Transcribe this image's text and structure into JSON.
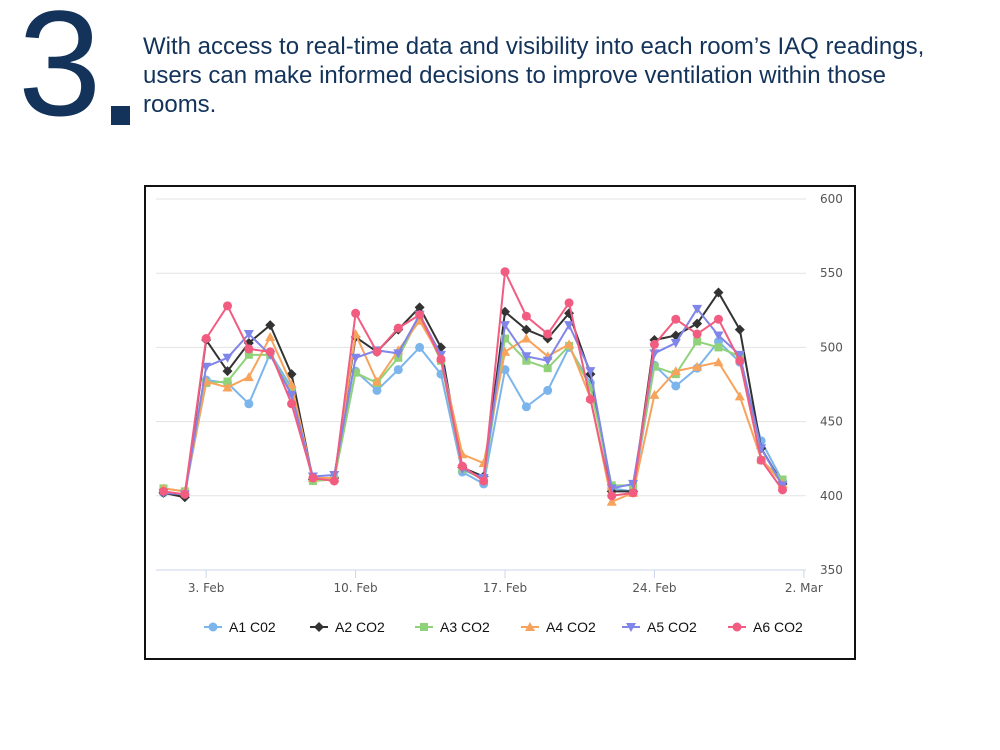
{
  "slide": {
    "number": "3",
    "text": "With access to real-time data and visibility into each room’s IAQ readings, users can make informed decisions to improve ventilation within those rooms."
  },
  "chart_data": {
    "type": "line",
    "title": "",
    "xlabel": "",
    "ylabel": "",
    "ylim": [
      350,
      600
    ],
    "y_ticks": [
      350,
      400,
      450,
      500,
      550,
      600
    ],
    "x_tick_labels": [
      "3. Feb",
      "10. Feb",
      "17. Feb",
      "24. Feb",
      "2. Mar"
    ],
    "x_start_date": "2020-02-01",
    "x_range_days": [
      0,
      30
    ],
    "x_tick_days": [
      2,
      9,
      16,
      23,
      30
    ],
    "x_days": [
      0,
      1,
      2,
      3,
      4,
      5,
      6,
      7,
      8,
      9,
      10,
      11,
      12,
      13,
      14,
      15,
      16,
      17,
      18,
      19,
      20,
      21,
      22,
      23,
      24,
      25,
      26,
      27,
      28,
      29,
      30
    ],
    "grid": true,
    "legend_position": "bottom",
    "series": [
      {
        "name": "A1 C02",
        "color": "#7cb5ec",
        "marker": "circle",
        "values": [
          402,
          401,
          478,
          476,
          462,
          496,
          473,
          411,
          412,
          484,
          471,
          485,
          500,
          482,
          416,
          408,
          485,
          460,
          471,
          500,
          476,
          405,
          403,
          488,
          474,
          486,
          504,
          490,
          437,
          410,
          null
        ]
      },
      {
        "name": "A2 CO2",
        "color": "#333333",
        "marker": "diamond",
        "values": [
          402,
          399,
          505,
          484,
          503,
          515,
          482,
          411,
          412,
          507,
          497,
          512,
          527,
          500,
          419,
          413,
          524,
          512,
          506,
          523,
          482,
          403,
          403,
          505,
          508,
          516,
          537,
          512,
          432,
          408,
          null
        ]
      },
      {
        "name": "A3 CO2",
        "color": "#90d27a",
        "marker": "square",
        "values": [
          405,
          403,
          476,
          477,
          495,
          495,
          470,
          410,
          411,
          483,
          476,
          493,
          521,
          491,
          418,
          411,
          506,
          491,
          486,
          501,
          473,
          407,
          407,
          487,
          482,
          504,
          500,
          494,
          424,
          411,
          null
        ]
      },
      {
        "name": "A4 CO2",
        "color": "#f7a35c",
        "marker": "triangle",
        "values": [
          405,
          403,
          477,
          473,
          480,
          507,
          475,
          412,
          412,
          509,
          477,
          498,
          518,
          493,
          428,
          422,
          497,
          506,
          494,
          502,
          466,
          396,
          402,
          468,
          484,
          487,
          490,
          467,
          425,
          408,
          null
        ]
      },
      {
        "name": "A5 CO2",
        "color": "#8085e9",
        "marker": "triangle-down",
        "values": [
          402,
          401,
          487,
          493,
          509,
          495,
          468,
          413,
          414,
          493,
          498,
          496,
          522,
          495,
          418,
          412,
          515,
          494,
          491,
          515,
          484,
          405,
          408,
          496,
          503,
          526,
          508,
          495,
          432,
          407,
          null
        ]
      },
      {
        "name": "A6 CO2",
        "color": "#f15c80",
        "marker": "circle",
        "values": [
          403,
          401,
          506,
          528,
          499,
          497,
          462,
          412,
          410,
          523,
          497,
          513,
          522,
          492,
          420,
          410,
          551,
          521,
          509,
          530,
          465,
          400,
          402,
          502,
          519,
          509,
          519,
          491,
          424,
          404,
          null
        ]
      }
    ]
  }
}
